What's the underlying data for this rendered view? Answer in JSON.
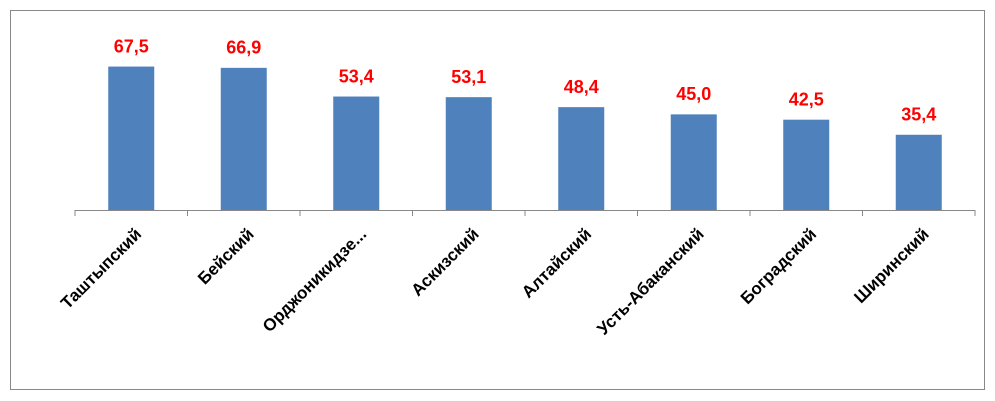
{
  "chart_data": {
    "type": "bar",
    "categories": [
      "Таштыпский",
      "Бейский",
      "Орджоникидзе...",
      "Аскизский",
      "Алтайский",
      "Усть-Абаканский",
      "Боградский",
      "Ширинский"
    ],
    "values": [
      67.5,
      66.9,
      53.4,
      53.1,
      48.4,
      45.0,
      42.5,
      35.4
    ],
    "value_labels": [
      "67,5",
      "66,9",
      "53,4",
      "53,1",
      "48,4",
      "45,0",
      "42,5",
      "35,4"
    ],
    "color": "#4f81bd",
    "value_label_color": "#ff0000",
    "ylim": [
      0,
      80
    ]
  }
}
